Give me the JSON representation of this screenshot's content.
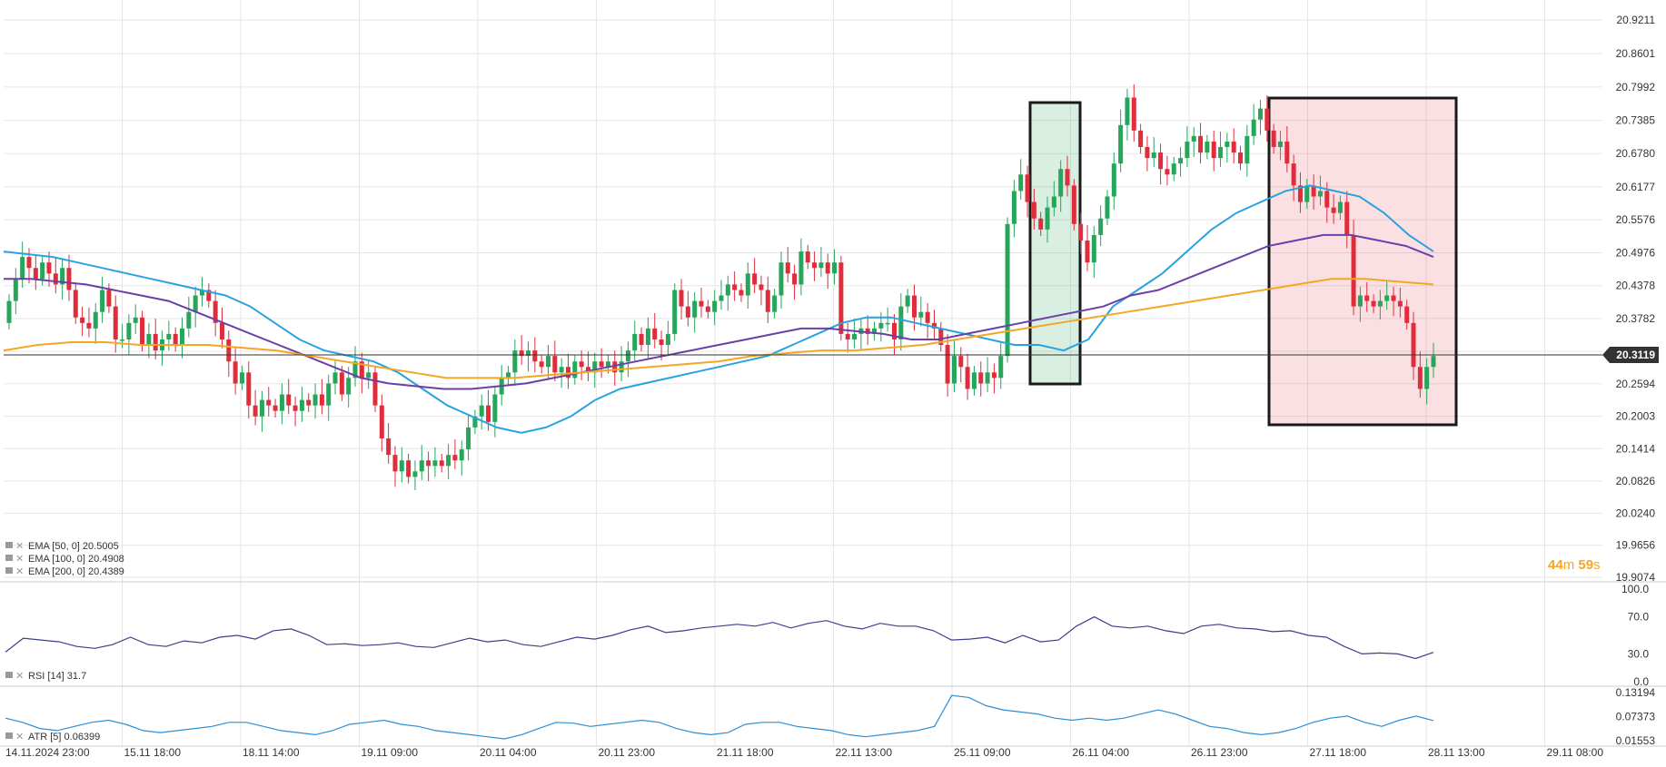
{
  "chart_data": [
    {
      "type": "candlestick",
      "panel": "price",
      "y_ticks": [
        "20.9211",
        "20.8601",
        "20.7992",
        "20.7385",
        "20.6780",
        "20.6177",
        "20.5576",
        "20.4976",
        "20.4378",
        "20.3782",
        "20.3185",
        "20.2594",
        "20.2003",
        "20.1414",
        "20.0826",
        "20.0240",
        "19.9656",
        "19.9074"
      ],
      "ylim": [
        19.9074,
        20.9211
      ],
      "x_ticks": [
        "14.11.2024  23:00",
        "15.11  18:00",
        "18.11  14:00",
        "19.11  09:00",
        "20.11  04:00",
        "20.11  23:00",
        "21.11  18:00",
        "22.11  13:00",
        "25.11  09:00",
        "26.11  04:00",
        "26.11  23:00",
        "27.11  18:00",
        "28.11  13:00",
        "29.11  08:00"
      ],
      "current_price": "20.3119",
      "candles_close": [
        20.41,
        20.45,
        20.49,
        20.47,
        20.45,
        20.48,
        20.46,
        20.44,
        20.47,
        20.43,
        20.38,
        20.37,
        20.36,
        20.39,
        20.43,
        20.4,
        20.34,
        20.34,
        20.37,
        20.38,
        20.33,
        20.35,
        20.32,
        20.34,
        20.35,
        20.33,
        20.36,
        20.39,
        20.42,
        20.43,
        20.41,
        20.37,
        20.34,
        20.3,
        20.26,
        20.28,
        20.22,
        20.2,
        20.23,
        20.22,
        20.21,
        20.24,
        20.22,
        20.21,
        20.23,
        20.22,
        20.24,
        20.22,
        20.26,
        20.28,
        20.24,
        20.27,
        20.3,
        20.27,
        20.28,
        20.22,
        20.16,
        20.13,
        20.1,
        20.12,
        20.09,
        20.1,
        20.12,
        20.11,
        20.12,
        20.11,
        20.13,
        20.12,
        20.14,
        20.18,
        20.2,
        20.22,
        20.19,
        20.24,
        20.27,
        20.28,
        20.32,
        20.31,
        20.32,
        20.3,
        20.29,
        20.31,
        20.28,
        20.29,
        20.27,
        20.3,
        20.29,
        20.28,
        20.3,
        20.29,
        20.3,
        20.28,
        20.3,
        20.32,
        20.35,
        20.33,
        20.36,
        20.34,
        20.33,
        20.35,
        20.43,
        20.4,
        20.38,
        20.41,
        20.4,
        20.39,
        20.41,
        20.42,
        20.44,
        20.43,
        20.42,
        20.46,
        20.44,
        20.43,
        20.39,
        20.42,
        20.48,
        20.46,
        20.44,
        20.5,
        20.48,
        20.47,
        20.48,
        20.46,
        20.48,
        20.35,
        20.34,
        20.35,
        20.36,
        20.35,
        20.36,
        20.37,
        20.37,
        20.34,
        20.4,
        20.42,
        20.38,
        20.39,
        20.37,
        20.36,
        20.33,
        20.26,
        20.31,
        20.29,
        20.25,
        20.28,
        20.26,
        20.28,
        20.27,
        20.31,
        20.55,
        20.61,
        20.64,
        20.59,
        20.56,
        20.54,
        20.58,
        20.6,
        20.65,
        20.62,
        20.55,
        20.52,
        20.48,
        20.53,
        20.56,
        20.6,
        20.66,
        20.73,
        20.78,
        20.72,
        20.69,
        20.67,
        20.68,
        20.65,
        20.64,
        20.66,
        20.67,
        20.7,
        20.71,
        20.68,
        20.7,
        20.67,
        20.69,
        20.7,
        20.68,
        20.66,
        20.71,
        20.74,
        20.76,
        20.72,
        20.69,
        20.7,
        20.66,
        20.62,
        20.59,
        20.62,
        20.6,
        20.61,
        20.58,
        20.57,
        20.59,
        20.53,
        20.4,
        20.42,
        20.41,
        20.4,
        20.41,
        20.42,
        20.41,
        20.4,
        20.37,
        20.29,
        20.25,
        20.29,
        20.31
      ],
      "candle_range_start_open": 20.37,
      "highlight_boxes": [
        "green",
        "red"
      ]
    },
    {
      "type": "line",
      "panel": "price-overlay",
      "series": [
        {
          "name": "EMA  [50,  0]  20.5005",
          "color": "#29a3e0",
          "values": [
            20.5,
            20.495,
            20.49,
            20.48,
            20.47,
            20.46,
            20.45,
            20.44,
            20.43,
            20.42,
            20.4,
            20.37,
            20.34,
            20.32,
            20.31,
            20.3,
            20.28,
            20.25,
            20.22,
            20.2,
            20.18,
            20.17,
            20.18,
            20.2,
            20.23,
            20.25,
            20.26,
            20.27,
            20.28,
            20.29,
            20.3,
            20.31,
            20.33,
            20.35,
            20.37,
            20.38,
            20.38,
            20.37,
            20.36,
            20.35,
            20.34,
            20.33,
            20.33,
            20.32,
            20.34,
            20.4,
            20.43,
            20.46,
            20.5,
            20.54,
            20.57,
            20.59,
            20.61,
            20.62,
            20.61,
            20.6,
            20.57,
            20.53,
            20.5
          ]
        },
        {
          "name": "EMA  [100,  0]  20.4908",
          "color": "#6b3fa8",
          "values": [
            20.45,
            20.45,
            20.445,
            20.44,
            20.43,
            20.42,
            20.41,
            20.39,
            20.37,
            20.35,
            20.33,
            20.31,
            20.29,
            20.27,
            20.26,
            20.255,
            20.25,
            20.25,
            20.255,
            20.26,
            20.27,
            20.28,
            20.29,
            20.3,
            20.31,
            20.32,
            20.33,
            20.34,
            20.35,
            20.36,
            20.36,
            20.355,
            20.35,
            20.34,
            20.34,
            20.35,
            20.36,
            20.37,
            20.38,
            20.39,
            20.4,
            20.42,
            20.43,
            20.45,
            20.47,
            20.49,
            20.51,
            20.52,
            20.53,
            20.53,
            20.52,
            20.51,
            20.49
          ]
        },
        {
          "name": "EMA  [200,  0]  20.4389",
          "color": "#f5a623",
          "values": [
            20.32,
            20.33,
            20.335,
            20.335,
            20.33,
            20.33,
            20.33,
            20.325,
            20.32,
            20.31,
            20.3,
            20.29,
            20.28,
            20.27,
            20.27,
            20.27,
            20.275,
            20.28,
            20.285,
            20.29,
            20.295,
            20.3,
            20.31,
            20.315,
            20.32,
            20.32,
            20.325,
            20.33,
            20.34,
            20.35,
            20.36,
            20.37,
            20.38,
            20.39,
            20.4,
            20.41,
            20.42,
            20.43,
            20.44,
            20.45,
            20.45,
            20.445,
            20.44
          ]
        }
      ]
    },
    {
      "type": "line",
      "panel": "rsi",
      "series": [
        {
          "name": "RSI  [14]  31.7",
          "color": "#3b3f8a",
          "values": [
            32,
            47,
            45,
            43,
            38,
            36,
            40,
            48,
            40,
            38,
            44,
            42,
            48,
            50,
            46,
            55,
            57,
            50,
            40,
            41,
            39,
            40,
            42,
            38,
            37,
            42,
            47,
            43,
            45,
            40,
            38,
            43,
            48,
            46,
            50,
            56,
            60,
            53,
            55,
            58,
            60,
            62,
            60,
            64,
            58,
            63,
            66,
            60,
            57,
            63,
            60,
            60,
            55,
            45,
            46,
            48,
            42,
            50,
            43,
            45,
            60,
            70,
            60,
            58,
            60,
            55,
            52,
            60,
            62,
            58,
            57,
            54,
            55,
            50,
            48,
            38,
            30,
            31,
            30,
            25,
            31.7
          ]
        }
      ],
      "y_ticks": [
        "100.0",
        "70.0",
        "30.0",
        "0.0"
      ],
      "ylim": [
        0,
        100
      ]
    },
    {
      "type": "line",
      "panel": "atr",
      "series": [
        {
          "name": "ATR  [5]  0.06399",
          "color": "#2a8fd6",
          "values": [
            0.07,
            0.06,
            0.045,
            0.04,
            0.05,
            0.06,
            0.065,
            0.055,
            0.04,
            0.035,
            0.04,
            0.045,
            0.05,
            0.06,
            0.06,
            0.05,
            0.04,
            0.035,
            0.03,
            0.04,
            0.055,
            0.06,
            0.065,
            0.055,
            0.05,
            0.04,
            0.035,
            0.03,
            0.025,
            0.02,
            0.03,
            0.045,
            0.06,
            0.058,
            0.05,
            0.055,
            0.06,
            0.065,
            0.06,
            0.045,
            0.035,
            0.03,
            0.035,
            0.055,
            0.06,
            0.06,
            0.05,
            0.045,
            0.04,
            0.03,
            0.025,
            0.03,
            0.035,
            0.04,
            0.05,
            0.125,
            0.12,
            0.1,
            0.09,
            0.085,
            0.08,
            0.07,
            0.065,
            0.07,
            0.065,
            0.07,
            0.08,
            0.09,
            0.08,
            0.065,
            0.05,
            0.045,
            0.035,
            0.03,
            0.035,
            0.045,
            0.06,
            0.07,
            0.075,
            0.06,
            0.05,
            0.065,
            0.075,
            0.064
          ]
        }
      ],
      "y_ticks": [
        "0.13194",
        "0.07373",
        "0.01553"
      ],
      "ylim": [
        0.01553,
        0.13194
      ]
    }
  ],
  "timer": {
    "minutes": "44",
    "minutes_unit": "m",
    "seconds": "59",
    "seconds_unit": "s"
  },
  "colors": {
    "up": "#26a65b",
    "down": "#e02d3c",
    "grid": "#e6e6e6",
    "green_box": "#26a65b",
    "red_box": "#e02d3c"
  }
}
